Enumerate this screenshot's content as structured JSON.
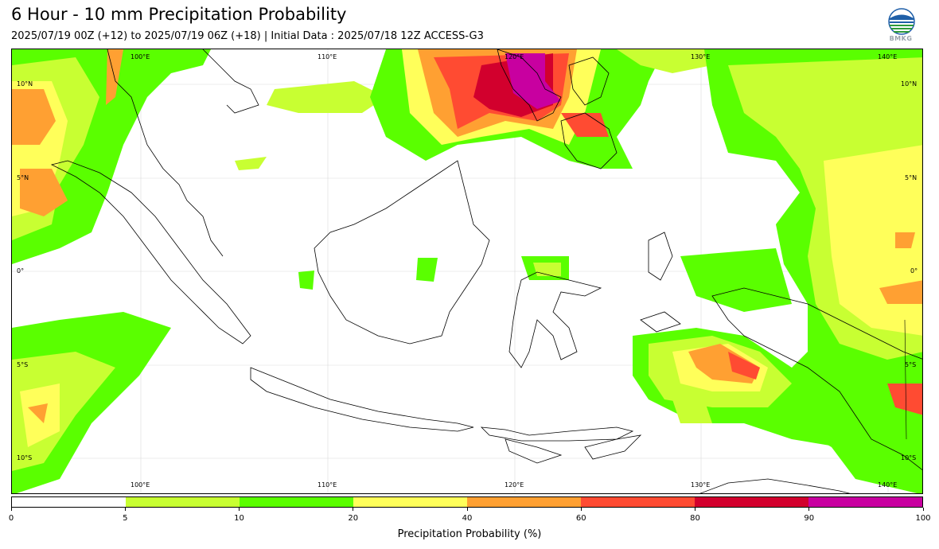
{
  "header": {
    "title": "6 Hour - 10 mm Precipitation Probability",
    "subtitle": "2025/07/19 00Z (+12) to 2025/07/19 06Z (+18) | Initial Data : 2025/07/18 12Z ACCESS-G3",
    "logo_text": "BMKG"
  },
  "map": {
    "lon_labels": [
      "100°E",
      "110°E",
      "120°E",
      "130°E",
      "140°E"
    ],
    "lat_labels": [
      "10°N",
      "5°N",
      "0°",
      "5°S",
      "10°S"
    ]
  },
  "colorbar": {
    "label": "Precipitation Probability (%)",
    "ticks": [
      "0",
      "5",
      "10",
      "20",
      "40",
      "60",
      "80",
      "90",
      "100"
    ],
    "colors": [
      "#ffffff",
      "#c8ff32",
      "#5aff00",
      "#ffff5a",
      "#ffa032",
      "#ff4b32",
      "#d2002d",
      "#c800a0"
    ]
  }
}
